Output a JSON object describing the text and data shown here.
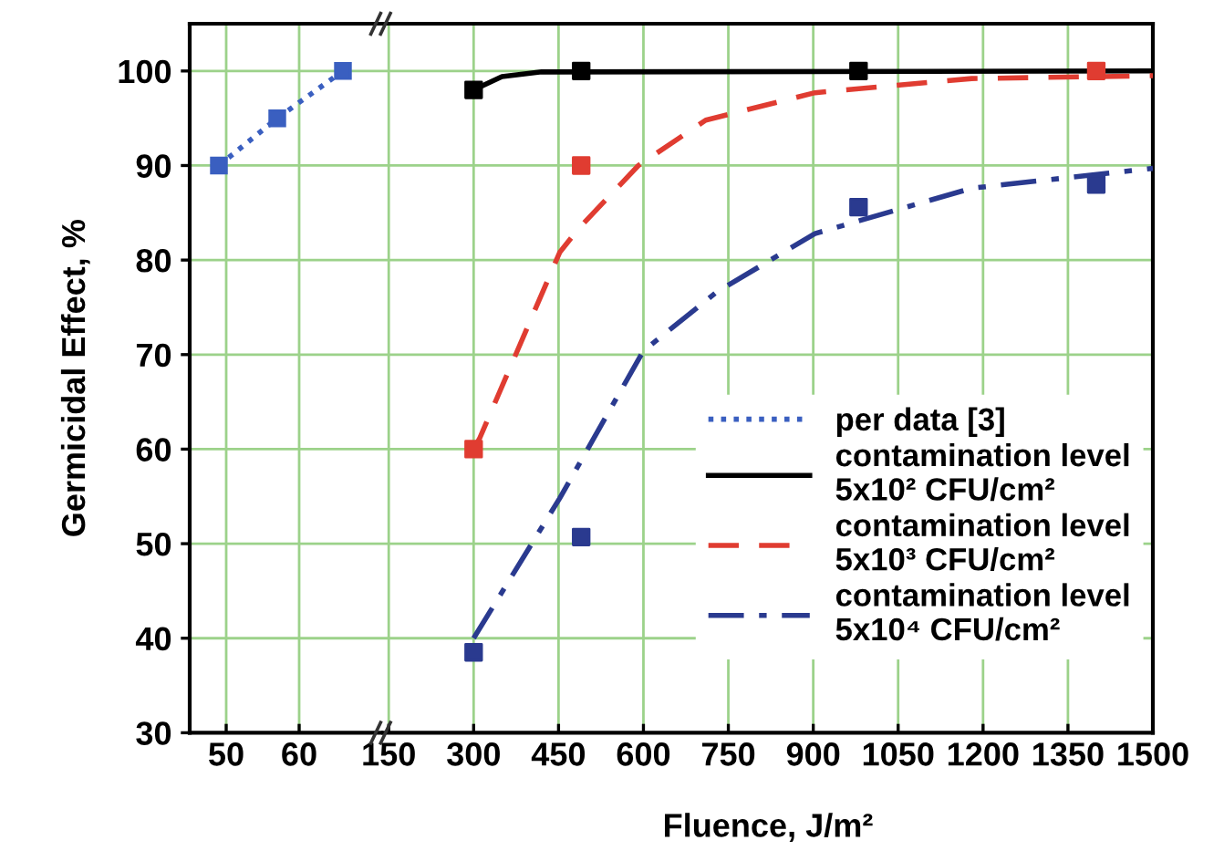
{
  "chart_data": [
    {
      "type": "line",
      "x": [
        49,
        57,
        66
      ],
      "xlim": [
        45,
        71.5
      ],
      "xticks": [
        50,
        60
      ],
      "ylim": [
        30,
        105
      ],
      "yticks": [
        30,
        40,
        50,
        60,
        70,
        80,
        90,
        100
      ],
      "ylabel": "Germicidal Effect, %",
      "grid": true,
      "series": [
        {
          "name": "per data [3]",
          "color": "#3a5fc0",
          "values": [
            90,
            95,
            100
          ],
          "marker": "square",
          "line_style": "dotted"
        }
      ]
    },
    {
      "type": "line",
      "xlim": [
        140,
        1500
      ],
      "xticks": [
        150,
        300,
        450,
        600,
        750,
        900,
        1050,
        1200,
        1350,
        1500
      ],
      "ylim": [
        30,
        105
      ],
      "yticks": [
        30,
        40,
        50,
        60,
        70,
        80,
        90,
        100
      ],
      "tick_labels": "x",
      "xlabel": "Fluence, J/m²",
      "grid": true,
      "legend": "lower right",
      "series": [
        {
          "name": "contamination level\n5x10² CFU/cm²",
          "color": "#000000",
          "x": [
            300,
            350,
            420,
            1500
          ],
          "values": [
            98,
            99.4,
            99.9,
            100
          ],
          "marker": "none",
          "line_style": "solid"
        },
        {
          "name": "contamination level\n5x10³ CFU/cm²",
          "color": "#e03c31",
          "x": [
            300,
            311,
            452,
            485,
            591,
            710,
            903,
            1180,
            1500
          ],
          "values": [
            60,
            61.2,
            80.8,
            83.3,
            90,
            94.8,
            97.7,
            99.2,
            99.5
          ],
          "marker": "none",
          "line_style": "dashed"
        },
        {
          "name": "contamination level\n5x10⁴ CFU/cm²",
          "color": "#2a3a8f",
          "x": [
            300,
            452,
            600,
            729,
            903,
            1180,
            1500
          ],
          "values": [
            40,
            54.8,
            70.4,
            76.6,
            82.8,
            87.6,
            89.7
          ],
          "marker": "none",
          "line_style": "dashdot"
        },
        {
          "type": "scatter",
          "color": "#000000",
          "x": [
            300,
            490,
            980
          ],
          "values": [
            98,
            100,
            100
          ],
          "marker": "square"
        },
        {
          "type": "scatter",
          "color": "#e03c31",
          "x": [
            300,
            490,
            1400
          ],
          "values": [
            60,
            90,
            100
          ],
          "marker": "square"
        },
        {
          "type": "scatter",
          "color": "#2a3a8f",
          "x": [
            300,
            490,
            980,
            1400
          ],
          "values": [
            38.5,
            50.7,
            85.6,
            88
          ],
          "marker": "square"
        }
      ]
    }
  ]
}
